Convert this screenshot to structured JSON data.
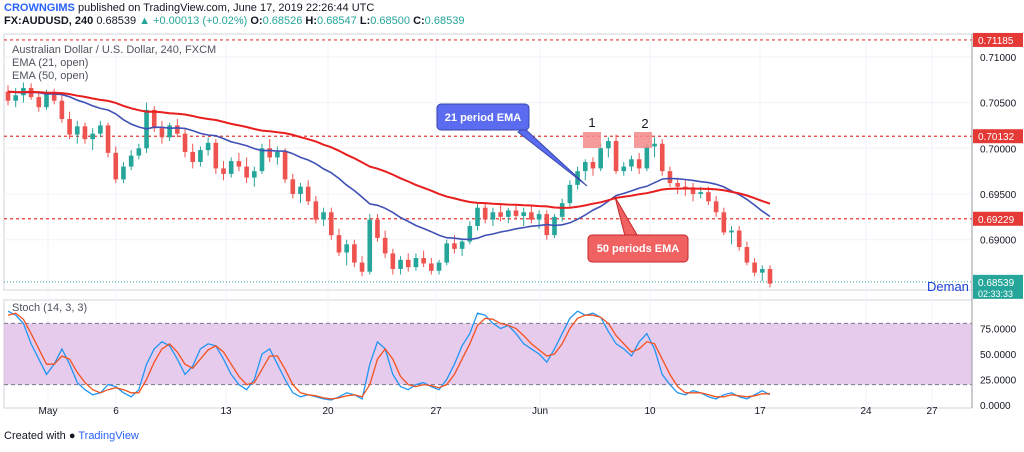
{
  "header": {
    "author": "CROWNGIMS",
    "published_text": "published on TradingView.com, June 17, 2019 22:26:44 UTC",
    "symbol": "FX:AUDUSD, 240",
    "last": "0.68539",
    "change": "▲ +0.00013 (+0.02%)",
    "o_label": "O:",
    "o_value": "0.68526",
    "h_label": "H:",
    "h_value": "0.68547",
    "l_label": "L:",
    "l_value": "0.68500",
    "c_label": "C:",
    "c_value": "0.68539"
  },
  "legend": {
    "title": "Australian Dollar / U.S. Dollar, 240, FXCM",
    "ema21": "EMA (21, open)",
    "ema50": "EMA (50, open)",
    "stoch": "Stoch (14, 3, 3)"
  },
  "annotations": {
    "ema21_callout": "21 period EMA",
    "ema50_callout": "50 periods EMA",
    "peak1": "1",
    "peak2": "2",
    "demand": "Deman"
  },
  "footer": {
    "created_with": "Created with",
    "tradingview": "TradingView"
  },
  "colors": {
    "up": "#26a69a",
    "down": "#ef5350",
    "ema21": "#3f51b5",
    "ema50": "#e91e1e",
    "level_line": "#e53935",
    "stoch_k": "#2196f3",
    "stoch_d": "#f4511e",
    "stoch_band": "#e1bee7",
    "callout_blue": "#5b6cf0",
    "callout_red": "#f06262"
  },
  "chart_data": {
    "type": "candlestick",
    "title": "Australian Dollar / U.S. Dollar, 240, FXCM",
    "x_tick_labels": [
      "May",
      "6",
      "13",
      "20",
      "27",
      "Jun",
      "10",
      "17",
      "24",
      "27"
    ],
    "price_ticks": [
      "0.71000",
      "0.70500",
      "0.70000",
      "0.69500",
      "0.69000"
    ],
    "price_range": [
      0.6845,
      0.7125
    ],
    "horizontal_levels": [
      {
        "label": "0.71185",
        "value": 0.71185
      },
      {
        "label": "0.70132",
        "value": 0.70132
      },
      {
        "label": "0.69229",
        "value": 0.69229
      }
    ],
    "current_price": {
      "label": "0.68539",
      "value": 0.68539,
      "countdown": "02:33:33"
    },
    "candles_4h_ohlc": [
      [
        0.7062,
        0.7069,
        0.7047,
        0.7052
      ],
      [
        0.7052,
        0.7066,
        0.7045,
        0.7058
      ],
      [
        0.7058,
        0.7072,
        0.705,
        0.7066
      ],
      [
        0.7066,
        0.7071,
        0.7053,
        0.7056
      ],
      [
        0.7056,
        0.7062,
        0.704,
        0.7045
      ],
      [
        0.7045,
        0.7064,
        0.7042,
        0.706
      ],
      [
        0.706,
        0.7065,
        0.7048,
        0.7052
      ],
      [
        0.7052,
        0.7058,
        0.7028,
        0.7032
      ],
      [
        0.7032,
        0.704,
        0.701,
        0.7015
      ],
      [
        0.7015,
        0.703,
        0.7005,
        0.7024
      ],
      [
        0.7024,
        0.7028,
        0.7005,
        0.701
      ],
      [
        0.701,
        0.7022,
        0.6998,
        0.7016
      ],
      [
        0.7016,
        0.703,
        0.7012,
        0.7025
      ],
      [
        0.7025,
        0.7028,
        0.699,
        0.6995
      ],
      [
        0.6995,
        0.7002,
        0.6962,
        0.6966
      ],
      [
        0.6966,
        0.6985,
        0.6962,
        0.698
      ],
      [
        0.698,
        0.6998,
        0.6976,
        0.6992
      ],
      [
        0.6992,
        0.7005,
        0.6988,
        0.7
      ],
      [
        0.7,
        0.705,
        0.6995,
        0.7042
      ],
      [
        0.7042,
        0.7046,
        0.7018,
        0.7022
      ],
      [
        0.7022,
        0.703,
        0.7005,
        0.7012
      ],
      [
        0.7012,
        0.7028,
        0.7008,
        0.7025
      ],
      [
        0.7025,
        0.7032,
        0.7012,
        0.7016
      ],
      [
        0.7016,
        0.7022,
        0.699,
        0.6996
      ],
      [
        0.6996,
        0.7005,
        0.6978,
        0.6985
      ],
      [
        0.6985,
        0.7002,
        0.698,
        0.6998
      ],
      [
        0.6998,
        0.7012,
        0.6992,
        0.7006
      ],
      [
        0.7006,
        0.701,
        0.6972,
        0.6978
      ],
      [
        0.6978,
        0.6986,
        0.6965,
        0.6972
      ],
      [
        0.6972,
        0.699,
        0.6968,
        0.6986
      ],
      [
        0.6986,
        0.6995,
        0.6975,
        0.698
      ],
      [
        0.698,
        0.699,
        0.6962,
        0.6968
      ],
      [
        0.6968,
        0.698,
        0.6958,
        0.6975
      ],
      [
        0.6975,
        0.7005,
        0.6972,
        0.7
      ],
      [
        0.7,
        0.701,
        0.6985,
        0.699
      ],
      [
        0.699,
        0.7002,
        0.6982,
        0.6996
      ],
      [
        0.6996,
        0.7,
        0.6962,
        0.6966
      ],
      [
        0.6966,
        0.6972,
        0.6945,
        0.695
      ],
      [
        0.695,
        0.6962,
        0.694,
        0.6958
      ],
      [
        0.6958,
        0.6965,
        0.6938,
        0.6942
      ],
      [
        0.6942,
        0.6948,
        0.6918,
        0.6922
      ],
      [
        0.6922,
        0.6935,
        0.6915,
        0.693
      ],
      [
        0.693,
        0.6935,
        0.69,
        0.6905
      ],
      [
        0.6905,
        0.6912,
        0.6882,
        0.6886
      ],
      [
        0.6886,
        0.69,
        0.6872,
        0.6895
      ],
      [
        0.6895,
        0.69,
        0.687,
        0.6875
      ],
      [
        0.6875,
        0.6882,
        0.686,
        0.6865
      ],
      [
        0.6865,
        0.6928,
        0.6862,
        0.6922
      ],
      [
        0.6922,
        0.6928,
        0.6898,
        0.6902
      ],
      [
        0.6902,
        0.691,
        0.688,
        0.6885
      ],
      [
        0.6885,
        0.689,
        0.6862,
        0.6868
      ],
      [
        0.6868,
        0.6882,
        0.6862,
        0.6878
      ],
      [
        0.6878,
        0.6885,
        0.6865,
        0.687
      ],
      [
        0.687,
        0.6885,
        0.6866,
        0.688
      ],
      [
        0.688,
        0.6888,
        0.687,
        0.6874
      ],
      [
        0.6874,
        0.688,
        0.6862,
        0.6866
      ],
      [
        0.6866,
        0.6878,
        0.6862,
        0.6875
      ],
      [
        0.6875,
        0.69,
        0.6872,
        0.6896
      ],
      [
        0.6896,
        0.6905,
        0.6885,
        0.689
      ],
      [
        0.689,
        0.69,
        0.6882,
        0.6898
      ],
      [
        0.6898,
        0.692,
        0.6895,
        0.6915
      ],
      [
        0.6915,
        0.694,
        0.691,
        0.6935
      ],
      [
        0.6935,
        0.694,
        0.6918,
        0.6922
      ],
      [
        0.6922,
        0.6935,
        0.6915,
        0.693
      ],
      [
        0.693,
        0.6938,
        0.692,
        0.6925
      ],
      [
        0.6925,
        0.6935,
        0.6918,
        0.6932
      ],
      [
        0.6932,
        0.6938,
        0.6922,
        0.6926
      ],
      [
        0.6926,
        0.6935,
        0.6915,
        0.693
      ],
      [
        0.693,
        0.6938,
        0.6918,
        0.6922
      ],
      [
        0.6922,
        0.6932,
        0.6912,
        0.6928
      ],
      [
        0.6928,
        0.6932,
        0.69,
        0.6905
      ],
      [
        0.6905,
        0.6928,
        0.6902,
        0.6925
      ],
      [
        0.6925,
        0.6945,
        0.692,
        0.694
      ],
      [
        0.694,
        0.6965,
        0.6935,
        0.696
      ],
      [
        0.696,
        0.698,
        0.6955,
        0.6975
      ],
      [
        0.6975,
        0.6988,
        0.6965,
        0.6985
      ],
      [
        0.6985,
        0.699,
        0.697,
        0.6978
      ],
      [
        0.6978,
        0.7005,
        0.6975,
        0.7
      ],
      [
        0.7,
        0.7012,
        0.699,
        0.7008
      ],
      [
        0.7008,
        0.7015,
        0.6972,
        0.6975
      ],
      [
        0.6975,
        0.6985,
        0.697,
        0.698
      ],
      [
        0.698,
        0.6992,
        0.6975,
        0.6988
      ],
      [
        0.6988,
        0.6995,
        0.6972,
        0.6978
      ],
      [
        0.6978,
        0.7005,
        0.6975,
        0.7002
      ],
      [
        0.7002,
        0.7012,
        0.699,
        0.7005
      ],
      [
        0.7005,
        0.701,
        0.697,
        0.6975
      ],
      [
        0.6975,
        0.698,
        0.6958,
        0.6962
      ],
      [
        0.6962,
        0.6968,
        0.695,
        0.6958
      ],
      [
        0.6958,
        0.6965,
        0.6948,
        0.6955
      ],
      [
        0.6955,
        0.6962,
        0.6942,
        0.695
      ],
      [
        0.695,
        0.6958,
        0.6945,
        0.6952
      ],
      [
        0.6952,
        0.6958,
        0.6938,
        0.6942
      ],
      [
        0.6942,
        0.6948,
        0.6925,
        0.693
      ],
      [
        0.693,
        0.6935,
        0.6905,
        0.6908
      ],
      [
        0.6908,
        0.6915,
        0.6895,
        0.691
      ],
      [
        0.691,
        0.6915,
        0.6888,
        0.6892
      ],
      [
        0.6892,
        0.6898,
        0.6872,
        0.6875
      ],
      [
        0.6875,
        0.688,
        0.686,
        0.6864
      ],
      [
        0.6864,
        0.6872,
        0.6855,
        0.6868
      ],
      [
        0.6868,
        0.6872,
        0.6848,
        0.6852
      ]
    ],
    "series": [
      {
        "name": "EMA (21, open)"
      },
      {
        "name": "EMA (50, open)"
      },
      {
        "name": "Stoch (14, 3, 3)"
      }
    ],
    "stoch_ticks": [
      "75.0000",
      "50.0000",
      "25.0000",
      "0.0000"
    ],
    "stoch_band": [
      20,
      80
    ],
    "stoch_k": [
      92,
      88,
      80,
      60,
      45,
      30,
      40,
      55,
      40,
      22,
      15,
      10,
      12,
      20,
      18,
      12,
      8,
      15,
      40,
      55,
      62,
      58,
      45,
      30,
      38,
      55,
      60,
      58,
      45,
      30,
      20,
      15,
      25,
      50,
      55,
      40,
      25,
      12,
      8,
      10,
      8,
      6,
      5,
      8,
      12,
      10,
      6,
      40,
      62,
      55,
      30,
      18,
      15,
      20,
      22,
      18,
      15,
      25,
      40,
      58,
      70,
      90,
      88,
      80,
      75,
      78,
      70,
      60,
      55,
      50,
      42,
      55,
      70,
      85,
      92,
      88,
      90,
      86,
      72,
      60,
      55,
      48,
      62,
      70,
      55,
      30,
      20,
      12,
      10,
      14,
      12,
      8,
      6,
      10,
      12,
      8,
      6,
      10,
      14,
      10
    ],
    "stoch_d": [
      88,
      90,
      84,
      70,
      55,
      40,
      40,
      48,
      45,
      32,
      22,
      15,
      12,
      15,
      17,
      15,
      12,
      12,
      25,
      42,
      55,
      60,
      52,
      40,
      36,
      45,
      54,
      58,
      52,
      40,
      28,
      20,
      22,
      35,
      48,
      48,
      35,
      20,
      12,
      10,
      9,
      7,
      6,
      7,
      9,
      10,
      8,
      20,
      45,
      55,
      45,
      28,
      20,
      18,
      20,
      19,
      17,
      20,
      30,
      45,
      60,
      78,
      85,
      84,
      80,
      78,
      75,
      68,
      60,
      54,
      48,
      50,
      60,
      75,
      85,
      88,
      88,
      86,
      80,
      68,
      60,
      52,
      55,
      62,
      60,
      45,
      30,
      18,
      12,
      12,
      12,
      10,
      8,
      8,
      10,
      9,
      8,
      9,
      11,
      11
    ]
  }
}
